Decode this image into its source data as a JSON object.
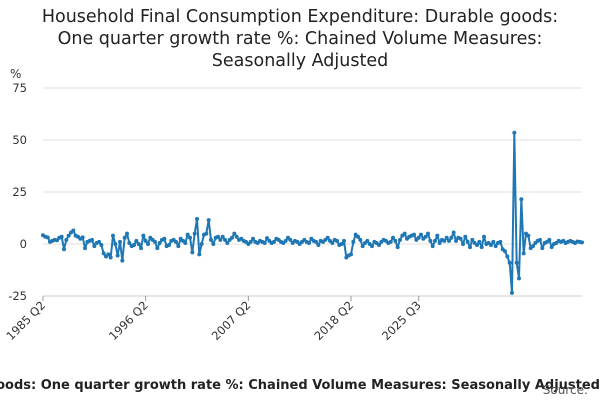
{
  "chart_data": {
    "type": "line",
    "title_lines": [
      "Household Final Consumption Expenditure: Durable goods:",
      "One quarter growth rate %: Chained Volume Measures:",
      "Seasonally Adjusted"
    ],
    "ylabel": "%",
    "xlabel": "",
    "ylim": [
      -25,
      75
    ],
    "y_ticks": [
      -25,
      0,
      25,
      50,
      75
    ],
    "x_tick_labels": [
      "1985 Q2",
      "1996 Q2",
      "2007 Q2",
      "2018 Q2",
      "2025 Q3"
    ],
    "x_start": "1985 Q2",
    "x_end": "2025 Q3",
    "grid": true,
    "color": "#1f77b4",
    "series": [
      {
        "values": [
          4.2,
          3.5,
          3.2,
          1.0,
          1.5,
          2.0,
          1.8,
          3.0,
          3.5,
          -2.5,
          2.0,
          4.0,
          5.5,
          6.5,
          4.0,
          3.5,
          2.5,
          3.2,
          -2.0,
          1.0,
          1.5,
          2.0,
          -1.0,
          0.5,
          1.0,
          -0.5,
          -4.5,
          -6.0,
          -5.0,
          -6.5,
          4.0,
          0.0,
          -5.5,
          1.0,
          -8.0,
          3.0,
          5.0,
          0.5,
          -1.0,
          -0.5,
          1.5,
          0.0,
          -2.0,
          4.0,
          1.5,
          0.0,
          3.0,
          2.0,
          1.0,
          -2.0,
          0.5,
          2.0,
          2.5,
          -1.0,
          -0.5,
          1.5,
          2.0,
          1.0,
          -1.0,
          2.5,
          1.5,
          0.5,
          4.5,
          3.0,
          -4.0,
          5.0,
          12.0,
          -5.0,
          0.0,
          4.5,
          5.0,
          11.5,
          2.0,
          0.0,
          3.0,
          3.5,
          2.0,
          3.5,
          2.0,
          0.5,
          2.0,
          3.0,
          5.0,
          3.5,
          2.0,
          2.5,
          1.5,
          1.0,
          0.0,
          1.0,
          2.5,
          1.0,
          0.5,
          1.5,
          1.0,
          0.5,
          2.8,
          1.5,
          0.5,
          1.0,
          2.5,
          2.0,
          1.0,
          0.5,
          1.5,
          3.0,
          2.0,
          0.5,
          1.5,
          1.0,
          0.0,
          1.0,
          2.0,
          1.0,
          0.5,
          2.5,
          1.5,
          1.0,
          -0.5,
          1.5,
          1.0,
          2.0,
          3.0,
          1.5,
          0.5,
          2.0,
          1.5,
          -0.5,
          0.0,
          1.5,
          -6.5,
          -5.5,
          -5.0,
          1.0,
          4.5,
          3.5,
          2.0,
          -1.0,
          0.5,
          1.5,
          0.0,
          -1.0,
          1.0,
          0.5,
          -0.5,
          1.0,
          2.0,
          1.5,
          0.5,
          1.0,
          3.0,
          1.5,
          -1.5,
          2.0,
          4.0,
          5.0,
          2.5,
          3.5,
          4.0,
          4.5,
          2.0,
          3.0,
          4.5,
          2.5,
          3.5,
          5.0,
          1.5,
          -1.0,
          1.5,
          4.0,
          0.5,
          2.0,
          1.5,
          3.0,
          1.5,
          3.0,
          5.5,
          1.5,
          3.0,
          2.5,
          0.0,
          3.5,
          1.0,
          -1.5,
          2.0,
          0.5,
          -0.5,
          1.0,
          -1.5,
          3.5,
          0.0,
          0.5,
          -0.5,
          1.0,
          -1.0,
          0.5,
          1.0,
          -2.5,
          -3.5,
          -6.0,
          -9.0,
          -23.5,
          53.5,
          -9.0,
          -16.5,
          21.5,
          -4.5,
          5.0,
          4.0,
          -2.0,
          -1.0,
          0.5,
          1.5,
          2.0,
          -2.0,
          0.5,
          1.0,
          2.0,
          -1.5,
          0.0,
          0.5,
          1.5,
          1.0,
          1.5,
          0.5,
          1.0,
          1.5,
          1.0,
          0.5,
          1.2,
          1.0,
          0.8
        ]
      }
    ],
    "footer_caption": "Household Final Consumption Expenditure: Durable goods: One quarter growth rate %: Chained Volume Measures: Seasonally Adjusted",
    "source_label": "Source:"
  }
}
